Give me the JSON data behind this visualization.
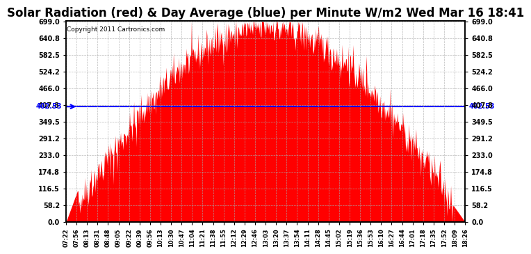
{
  "title": "Solar Radiation (red) & Day Average (blue) per Minute W/m2 Wed Mar 16 18:41",
  "copyright": "Copyright 2011 Cartronics.com",
  "y_max": 699.0,
  "y_min": 0.0,
  "y_ticks": [
    0.0,
    58.2,
    116.5,
    174.8,
    233.0,
    291.2,
    349.5,
    407.8,
    466.0,
    524.2,
    582.5,
    640.8,
    699.0
  ],
  "avg_line": 402.53,
  "avg_label": "402.53",
  "fill_color": "#FF0000",
  "line_color": "#0000FF",
  "background_color": "#FFFFFF",
  "plot_bg_color": "#FFFFFF",
  "grid_color": "#AAAAAA",
  "title_fontsize": 12,
  "x_labels": [
    "07:22",
    "07:56",
    "08:13",
    "08:31",
    "08:48",
    "09:05",
    "09:22",
    "09:39",
    "09:56",
    "10:13",
    "10:30",
    "10:47",
    "11:04",
    "11:21",
    "11:38",
    "11:55",
    "12:12",
    "12:29",
    "12:46",
    "13:03",
    "13:20",
    "13:37",
    "13:54",
    "14:11",
    "14:28",
    "14:45",
    "15:02",
    "15:19",
    "15:36",
    "15:53",
    "16:10",
    "16:27",
    "16:44",
    "17:01",
    "17:18",
    "17:35",
    "17:52",
    "18:09",
    "18:26"
  ]
}
